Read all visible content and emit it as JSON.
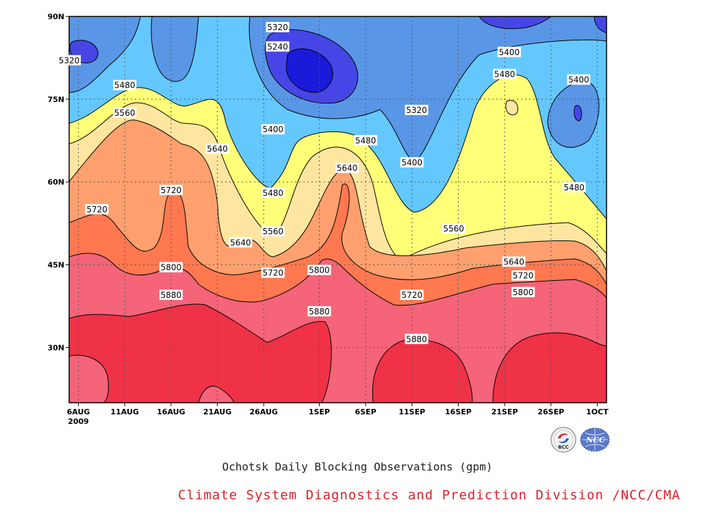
{
  "chart_data": {
    "type": "contour",
    "title": "Ochotsk Daily Blocking Observations (gpm)",
    "credit": "Climate System Diagnostics and Prediction Division /NCC/CMA",
    "y_ticks": [
      "90N",
      "75N",
      "60N",
      "45N",
      "30N"
    ],
    "y_values": [
      90,
      75,
      60,
      45,
      30
    ],
    "ylim": [
      20,
      90
    ],
    "x_ticks": [
      "6AUG",
      "11AUG",
      "16AUG",
      "21AUG",
      "26AUG",
      "1SEP",
      "6SEP",
      "11SEP",
      "16SEP",
      "21SEP",
      "26SEP",
      "1OCT"
    ],
    "x_days": [
      0,
      5,
      10,
      15,
      20,
      26,
      31,
      36,
      41,
      46,
      51,
      56
    ],
    "x_year": "2009",
    "xlim": [
      -1,
      57
    ],
    "grid": true,
    "contour_levels": [
      5240,
      5320,
      5400,
      5480,
      5560,
      5640,
      5720,
      5800,
      5880
    ],
    "level_colors": [
      "#1a1ad8",
      "#4646e6",
      "#5a96e6",
      "#64c8ff",
      "#ffff78",
      "#ffe6a0",
      "#ffa06e",
      "#ff7850",
      "#f56478",
      "#f03246"
    ],
    "contour_labels": [
      {
        "text": "5320",
        "day": 21.5,
        "lat": 88
      },
      {
        "text": "5240",
        "day": 21.5,
        "lat": 84.5
      },
      {
        "text": "5320",
        "day": -1,
        "lat": 82
      },
      {
        "text": "5480",
        "day": 5,
        "lat": 77.5
      },
      {
        "text": "5560",
        "day": 5,
        "lat": 72.5
      },
      {
        "text": "5320",
        "day": 36.5,
        "lat": 73
      },
      {
        "text": "5400",
        "day": 46.5,
        "lat": 83.5
      },
      {
        "text": "5480",
        "day": 46,
        "lat": 79.5
      },
      {
        "text": "5400",
        "day": 54,
        "lat": 78.5
      },
      {
        "text": "5400",
        "day": 21,
        "lat": 69.5
      },
      {
        "text": "5480",
        "day": 31,
        "lat": 67.5
      },
      {
        "text": "5640",
        "day": 15,
        "lat": 66
      },
      {
        "text": "5400",
        "day": 36,
        "lat": 63.5
      },
      {
        "text": "5640",
        "day": 29,
        "lat": 62.5
      },
      {
        "text": "5720",
        "day": 10,
        "lat": 58.5
      },
      {
        "text": "5480",
        "day": 21,
        "lat": 58
      },
      {
        "text": "5720",
        "day": 2,
        "lat": 55
      },
      {
        "text": "5480",
        "day": 53.5,
        "lat": 59
      },
      {
        "text": "5560",
        "day": 21,
        "lat": 51
      },
      {
        "text": "5560",
        "day": 40.5,
        "lat": 51.5
      },
      {
        "text": "5640",
        "day": 17.5,
        "lat": 49
      },
      {
        "text": "5640",
        "day": 47,
        "lat": 45.5
      },
      {
        "text": "5800",
        "day": 10,
        "lat": 44.5
      },
      {
        "text": "5720",
        "day": 21,
        "lat": 43.5
      },
      {
        "text": "5800",
        "day": 26,
        "lat": 44
      },
      {
        "text": "5720",
        "day": 48,
        "lat": 43
      },
      {
        "text": "5800",
        "day": 48,
        "lat": 40
      },
      {
        "text": "5720",
        "day": 36,
        "lat": 39.5
      },
      {
        "text": "5880",
        "day": 10,
        "lat": 39.5
      },
      {
        "text": "5880",
        "day": 26,
        "lat": 36.5
      },
      {
        "text": "5880",
        "day": 36.5,
        "lat": 31.5
      }
    ]
  },
  "logos": [
    {
      "name": "BCC",
      "text": "BCC"
    },
    {
      "name": "NCC",
      "text": "NCC"
    }
  ]
}
